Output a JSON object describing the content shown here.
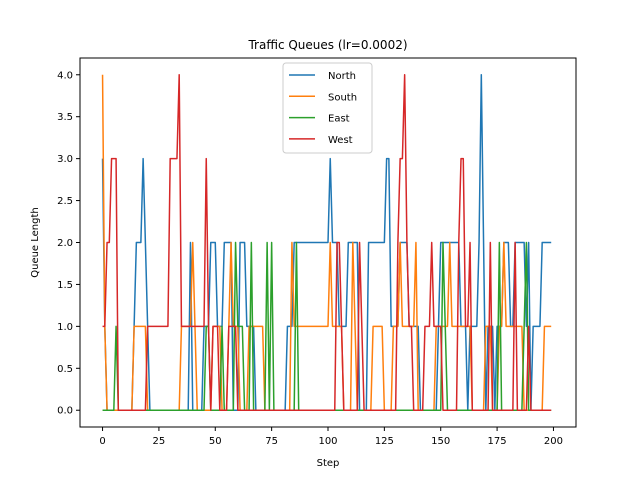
{
  "chart_data": {
    "type": "line",
    "title": "Traffic Queues (lr=0.0002)",
    "xlabel": "Step",
    "ylabel": "Queue Length",
    "xlim": [
      -10,
      210
    ],
    "ylim": [
      -0.2,
      4.2
    ],
    "xticks": [
      0,
      25,
      50,
      75,
      100,
      125,
      150,
      175,
      200
    ],
    "xtick_labels": [
      "0",
      "25",
      "50",
      "75",
      "100",
      "125",
      "150",
      "175",
      "200"
    ],
    "yticks": [
      0,
      0.5,
      1,
      1.5,
      2,
      2.5,
      3,
      3.5,
      4
    ],
    "ytick_labels": [
      "0.0",
      "0.5",
      "1.0",
      "1.5",
      "2.0",
      "2.5",
      "3.0",
      "3.5",
      "4.0"
    ],
    "grid": false,
    "legend_position": "top-center",
    "series": [
      {
        "name": "North",
        "color": "#1f77b4",
        "points": [
          [
            0,
            3
          ],
          [
            1,
            1
          ],
          [
            2,
            0
          ],
          [
            13,
            0
          ],
          [
            14,
            1
          ],
          [
            15,
            2
          ],
          [
            17,
            2
          ],
          [
            18,
            3
          ],
          [
            19,
            2
          ],
          [
            20,
            1
          ],
          [
            21,
            0
          ],
          [
            38,
            0
          ],
          [
            39,
            2
          ],
          [
            40,
            0
          ],
          [
            44,
            0
          ],
          [
            45,
            1
          ],
          [
            47,
            1
          ],
          [
            48,
            2
          ],
          [
            50,
            2
          ],
          [
            51,
            1
          ],
          [
            53,
            1
          ],
          [
            54,
            2
          ],
          [
            57,
            2
          ],
          [
            58,
            0
          ],
          [
            60,
            0
          ],
          [
            61,
            2
          ],
          [
            63,
            2
          ],
          [
            64,
            1
          ],
          [
            67,
            1
          ],
          [
            68,
            0
          ],
          [
            81,
            0
          ],
          [
            82,
            1
          ],
          [
            84,
            1
          ],
          [
            85,
            2
          ],
          [
            90,
            2
          ],
          [
            91,
            2
          ],
          [
            100,
            2
          ],
          [
            101,
            3
          ],
          [
            102,
            2
          ],
          [
            104,
            2
          ],
          [
            105,
            1
          ],
          [
            108,
            1
          ],
          [
            109,
            2
          ],
          [
            113,
            2
          ],
          [
            114,
            0
          ],
          [
            117,
            0
          ],
          [
            118,
            2
          ],
          [
            125,
            2
          ],
          [
            126,
            3
          ],
          [
            127,
            3
          ],
          [
            128,
            1
          ],
          [
            131,
            1
          ],
          [
            132,
            2
          ],
          [
            135,
            2
          ],
          [
            136,
            1
          ],
          [
            140,
            1
          ],
          [
            141,
            0
          ],
          [
            148,
            0
          ],
          [
            149,
            1
          ],
          [
            150,
            2
          ],
          [
            158,
            2
          ],
          [
            159,
            1
          ],
          [
            161,
            1
          ],
          [
            162,
            0
          ],
          [
            163,
            1
          ],
          [
            166,
            1
          ],
          [
            167,
            2
          ],
          [
            168,
            4
          ],
          [
            170,
            0
          ],
          [
            171,
            1
          ],
          [
            173,
            1
          ],
          [
            174,
            0
          ],
          [
            175,
            1
          ],
          [
            177,
            1
          ],
          [
            178,
            2
          ],
          [
            180,
            2
          ],
          [
            181,
            1
          ],
          [
            182,
            1
          ],
          [
            183,
            2
          ],
          [
            187,
            2
          ],
          [
            188,
            1
          ],
          [
            189,
            2
          ],
          [
            190,
            0
          ],
          [
            191,
            1
          ],
          [
            194,
            1
          ],
          [
            195,
            2
          ],
          [
            199,
            2
          ]
        ]
      },
      {
        "name": "South",
        "color": "#ff7f0e",
        "points": [
          [
            0,
            4
          ],
          [
            1,
            1
          ],
          [
            2,
            0
          ],
          [
            13,
            0
          ],
          [
            14,
            1
          ],
          [
            19,
            1
          ],
          [
            20,
            0
          ],
          [
            34,
            0
          ],
          [
            35,
            1
          ],
          [
            38,
            1
          ],
          [
            39,
            1
          ],
          [
            40,
            2
          ],
          [
            41,
            1
          ],
          [
            42,
            0
          ],
          [
            48,
            0
          ],
          [
            49,
            1
          ],
          [
            52,
            1
          ],
          [
            53,
            0
          ],
          [
            55,
            0
          ],
          [
            56,
            1
          ],
          [
            57,
            2
          ],
          [
            58,
            1
          ],
          [
            60,
            1
          ],
          [
            61,
            0
          ],
          [
            64,
            0
          ],
          [
            65,
            1
          ],
          [
            71,
            1
          ],
          [
            72,
            0
          ],
          [
            83,
            0
          ],
          [
            84,
            2
          ],
          [
            85,
            1
          ],
          [
            86,
            1
          ],
          [
            87,
            1
          ],
          [
            94,
            1
          ],
          [
            95,
            1
          ],
          [
            100,
            1
          ],
          [
            101,
            2
          ],
          [
            102,
            1
          ],
          [
            106,
            1
          ],
          [
            107,
            0
          ],
          [
            110,
            0
          ],
          [
            111,
            2
          ],
          [
            112,
            1
          ],
          [
            113,
            0
          ],
          [
            119,
            0
          ],
          [
            120,
            1
          ],
          [
            124,
            1
          ],
          [
            125,
            0
          ],
          [
            128,
            0
          ],
          [
            129,
            1
          ],
          [
            131,
            1
          ],
          [
            132,
            2
          ],
          [
            133,
            1
          ],
          [
            138,
            1
          ],
          [
            139,
            2
          ],
          [
            140,
            0
          ],
          [
            147,
            0
          ],
          [
            148,
            1
          ],
          [
            153,
            1
          ],
          [
            154,
            2
          ],
          [
            155,
            1
          ],
          [
            162,
            1
          ],
          [
            163,
            1
          ],
          [
            164,
            0
          ],
          [
            169,
            0
          ],
          [
            170,
            1
          ],
          [
            172,
            1
          ],
          [
            173,
            0
          ],
          [
            175,
            0
          ],
          [
            176,
            1
          ],
          [
            177,
            1
          ],
          [
            178,
            2
          ],
          [
            179,
            1
          ],
          [
            185,
            1
          ],
          [
            186,
            1
          ],
          [
            187,
            0
          ],
          [
            195,
            0
          ],
          [
            196,
            1
          ],
          [
            199,
            1
          ]
        ]
      },
      {
        "name": "East",
        "color": "#2ca02c",
        "points": [
          [
            0,
            0
          ],
          [
            5,
            0
          ],
          [
            6,
            1
          ],
          [
            7,
            0
          ],
          [
            45,
            0
          ],
          [
            46,
            1
          ],
          [
            47,
            1
          ],
          [
            48,
            0
          ],
          [
            52,
            0
          ],
          [
            53,
            1
          ],
          [
            54,
            0
          ],
          [
            58,
            0
          ],
          [
            59,
            2
          ],
          [
            60,
            1
          ],
          [
            62,
            1
          ],
          [
            63,
            0
          ],
          [
            65,
            0
          ],
          [
            66,
            2
          ],
          [
            67,
            0
          ],
          [
            72,
            0
          ],
          [
            73,
            2
          ],
          [
            74,
            0
          ],
          [
            75,
            2
          ],
          [
            76,
            0
          ],
          [
            85,
            0
          ],
          [
            86,
            2
          ],
          [
            87,
            0
          ],
          [
            150,
            0
          ],
          [
            151,
            2
          ],
          [
            152,
            1
          ],
          [
            153,
            0
          ],
          [
            175,
            0
          ],
          [
            176,
            2
          ],
          [
            177,
            0
          ],
          [
            186,
            0
          ],
          [
            187,
            1
          ],
          [
            188,
            2
          ],
          [
            189,
            0
          ],
          [
            199,
            0
          ]
        ]
      },
      {
        "name": "West",
        "color": "#d62728",
        "points": [
          [
            0,
            1
          ],
          [
            1,
            1
          ],
          [
            2,
            2
          ],
          [
            3,
            2
          ],
          [
            4,
            3
          ],
          [
            6,
            3
          ],
          [
            7,
            0
          ],
          [
            19,
            0
          ],
          [
            20,
            1
          ],
          [
            29,
            1
          ],
          [
            30,
            3
          ],
          [
            33,
            3
          ],
          [
            34,
            4
          ],
          [
            35,
            1
          ],
          [
            45,
            1
          ],
          [
            46,
            3
          ],
          [
            47,
            1
          ],
          [
            48,
            0
          ],
          [
            49,
            1
          ],
          [
            51,
            1
          ],
          [
            52,
            0
          ],
          [
            55,
            0
          ],
          [
            56,
            1
          ],
          [
            59,
            1
          ],
          [
            60,
            0
          ],
          [
            75,
            0
          ],
          [
            76,
            0
          ],
          [
            103,
            0
          ],
          [
            104,
            2
          ],
          [
            105,
            2
          ],
          [
            106,
            1
          ],
          [
            107,
            0
          ],
          [
            113,
            0
          ],
          [
            114,
            2
          ],
          [
            115,
            1
          ],
          [
            116,
            0
          ],
          [
            125,
            0
          ],
          [
            126,
            0
          ],
          [
            130,
            0
          ],
          [
            131,
            2
          ],
          [
            132,
            3
          ],
          [
            133,
            3
          ],
          [
            134,
            4
          ],
          [
            135,
            2
          ],
          [
            136,
            1
          ],
          [
            137,
            1
          ],
          [
            138,
            0
          ],
          [
            142,
            0
          ],
          [
            143,
            1
          ],
          [
            145,
            1
          ],
          [
            146,
            2
          ],
          [
            147,
            1
          ],
          [
            150,
            1
          ],
          [
            151,
            0
          ],
          [
            157,
            0
          ],
          [
            158,
            2
          ],
          [
            159,
            3
          ],
          [
            160,
            3
          ],
          [
            161,
            1
          ],
          [
            162,
            1
          ],
          [
            163,
            2
          ],
          [
            164,
            0
          ],
          [
            171,
            0
          ],
          [
            172,
            2
          ],
          [
            173,
            0
          ],
          [
            182,
            0
          ],
          [
            183,
            2
          ],
          [
            184,
            0
          ],
          [
            188,
            0
          ],
          [
            189,
            1
          ],
          [
            190,
            0
          ],
          [
            199,
            0
          ]
        ]
      }
    ]
  }
}
